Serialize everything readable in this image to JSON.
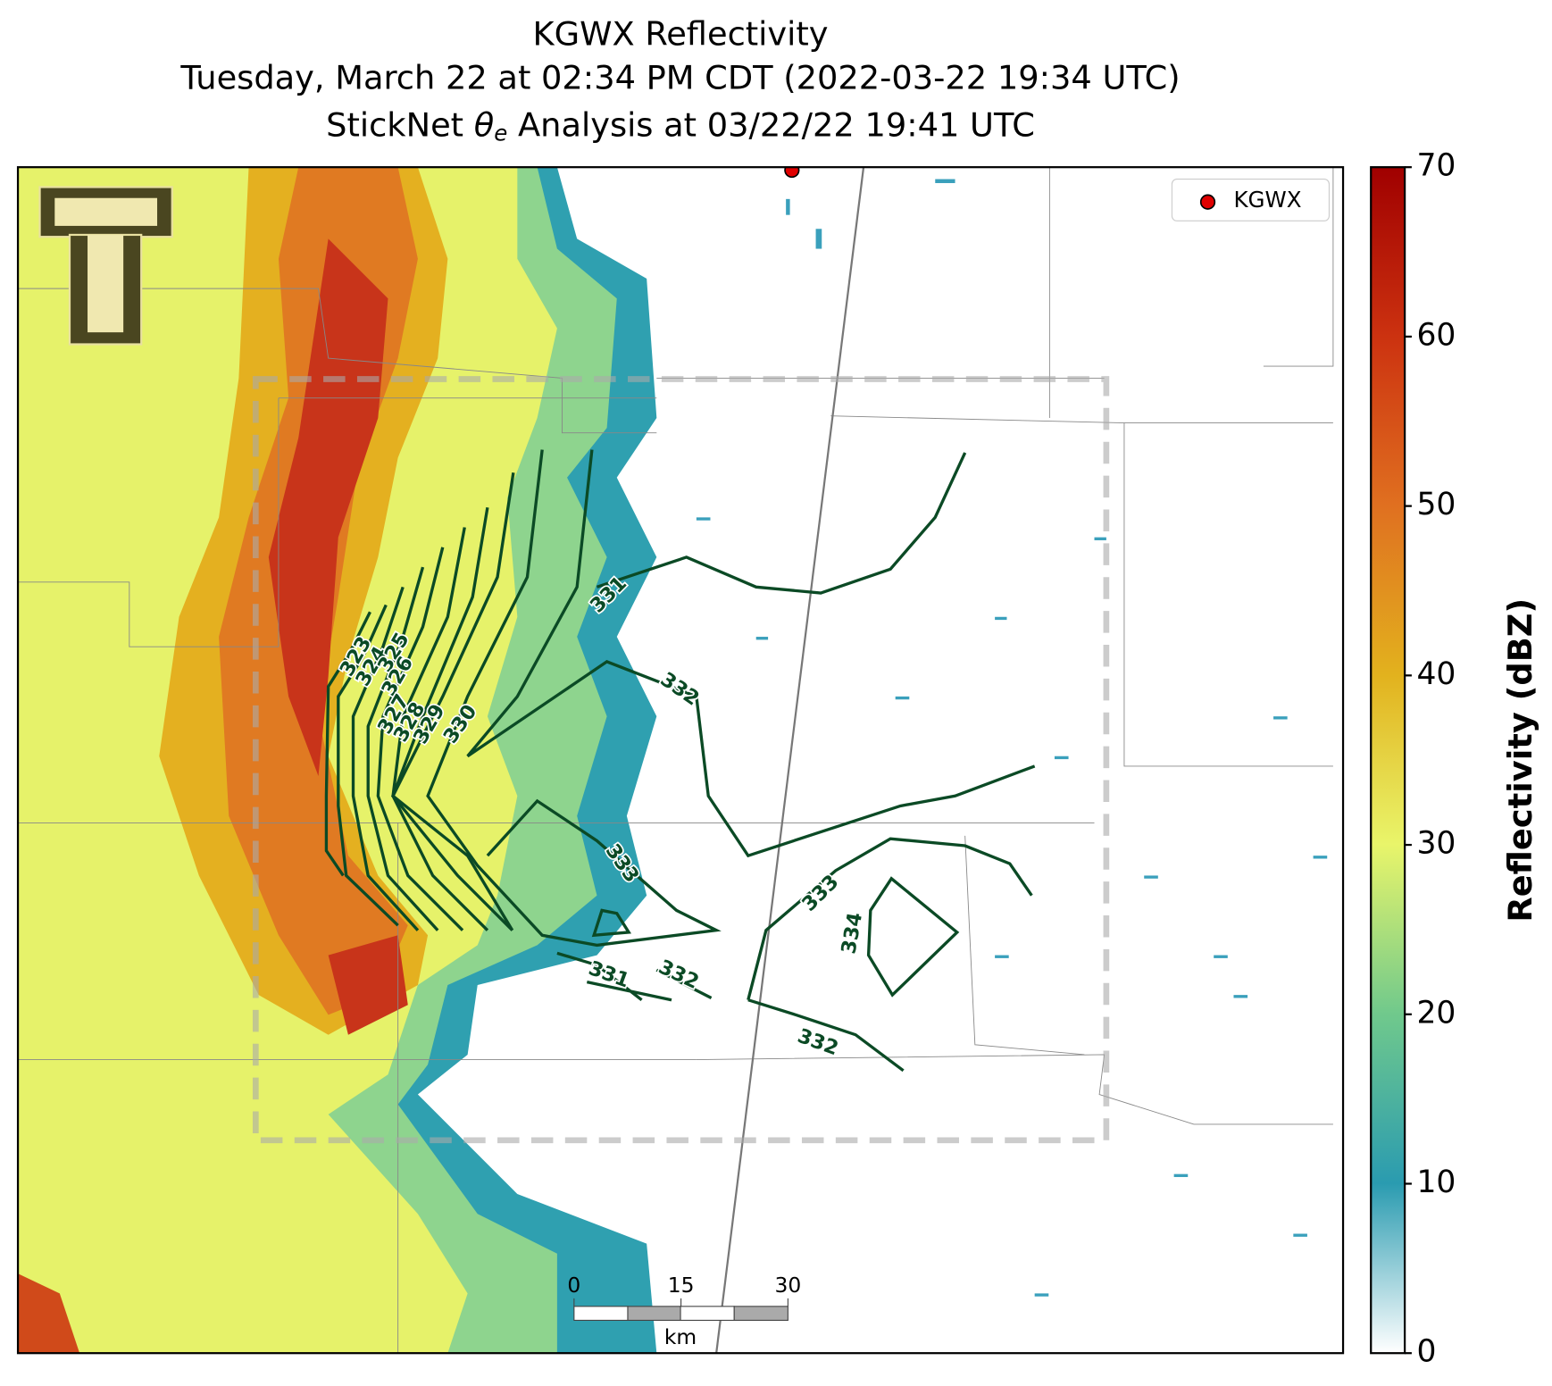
{
  "title": {
    "line1": "KGWX Reflectivity",
    "line2": "Tuesday, March 22 at 02:34 PM CDT (2022-03-22 19:34 UTC)",
    "line3_pre": "StickNet",
    "line3_symbol": "θ",
    "line3_sub": "e",
    "line3_post": "Analysis at 03/22/22 19:41 UTC"
  },
  "legend": {
    "label": "KGWX"
  },
  "colorbar": {
    "label": "Reflectivity (dBZ)",
    "lim": [
      0,
      70
    ],
    "ticks": [
      0,
      10,
      20,
      30,
      40,
      50,
      60,
      70
    ]
  },
  "scale_bar": {
    "ticks": [
      0,
      15,
      30
    ],
    "unit": "km"
  },
  "contour_labels": [
    323,
    324,
    325,
    326,
    327,
    328,
    329,
    330,
    331,
    332,
    333,
    331,
    332,
    333,
    334,
    332
  ]
}
